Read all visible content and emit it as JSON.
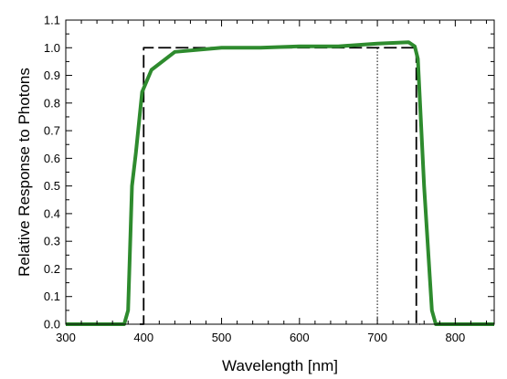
{
  "chart_data": {
    "type": "line",
    "title": "",
    "xlabel": "Wavelength [nm]",
    "ylabel": "Relative Response to Photons",
    "xlim": [
      300,
      850
    ],
    "ylim": [
      0.0,
      1.1
    ],
    "grid": false,
    "x_ticks": [
      300,
      400,
      500,
      600,
      700,
      800
    ],
    "x_tick_labels": [
      "300",
      "400",
      "500",
      "600",
      "700",
      "800"
    ],
    "y_ticks": [
      0.0,
      0.1,
      0.2,
      0.3,
      0.4,
      0.5,
      0.6,
      0.7,
      0.8,
      0.9,
      1.0,
      1.1
    ],
    "y_tick_labels": [
      "0.0",
      "0.1",
      "0.2",
      "0.3",
      "0.4",
      "0.5",
      "0.6",
      "0.7",
      "0.8",
      "0.9",
      "1.0",
      "1.1"
    ],
    "series": [
      {
        "style": "solid",
        "color": "#2e8b2e",
        "x": [
          300,
          360,
          375,
          380,
          385,
          390,
          398,
          410,
          440,
          500,
          550,
          600,
          650,
          700,
          740,
          748,
          752,
          760,
          770,
          775,
          780,
          850
        ],
        "y": [
          0.0,
          0.0,
          0.0,
          0.05,
          0.5,
          0.62,
          0.84,
          0.92,
          0.985,
          1.0,
          1.0,
          1.005,
          1.005,
          1.015,
          1.02,
          1.005,
          0.96,
          0.5,
          0.05,
          0.0,
          0.0,
          0.0
        ]
      },
      {
        "style": "dashed",
        "color": "#000000",
        "x": [
          395,
          400,
          400,
          750,
          750,
          755
        ],
        "y": [
          0.0,
          0.0,
          1.0,
          1.0,
          0.0,
          0.0
        ]
      },
      {
        "style": "dotted",
        "color": "#000000",
        "x": [
          700,
          700
        ],
        "y": [
          0.0,
          1.0
        ]
      }
    ]
  }
}
